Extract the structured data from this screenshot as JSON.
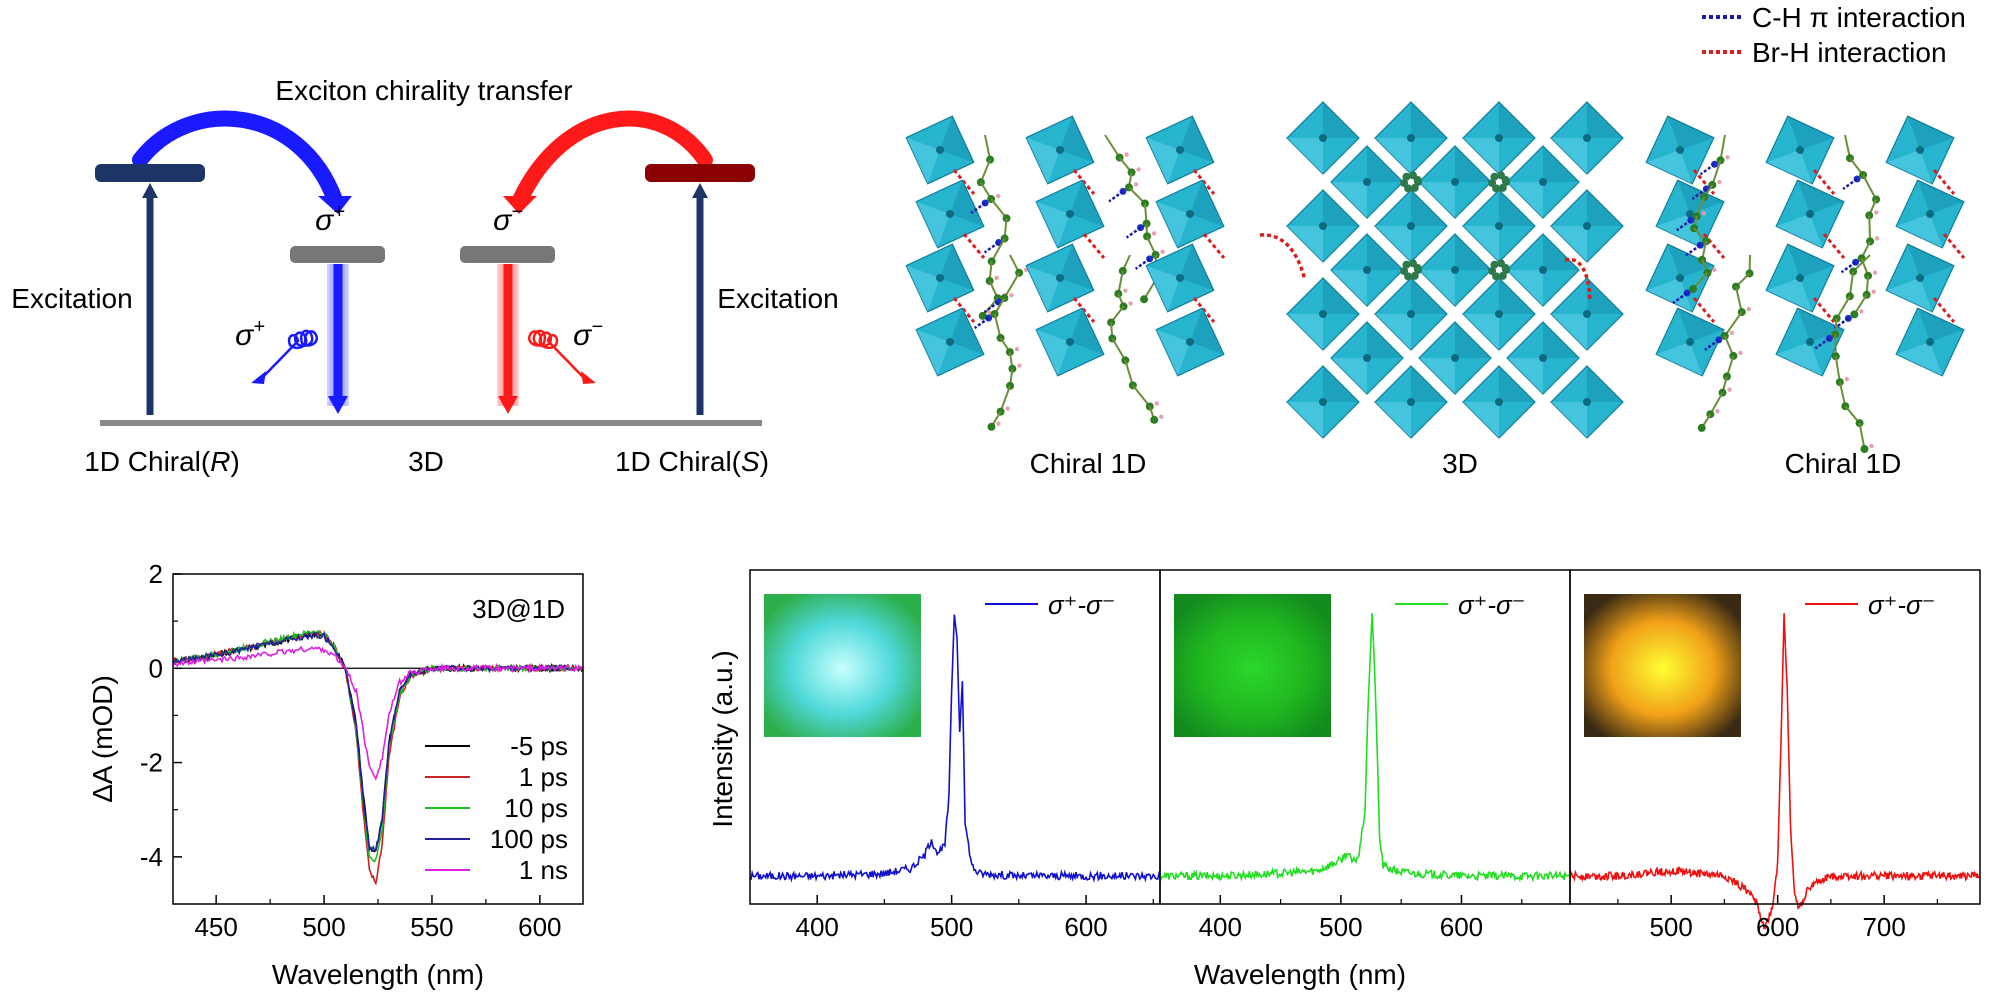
{
  "schematic": {
    "title": "Exciton chirality transfer",
    "excitation_left": "Excitation",
    "excitation_right": "Excitation",
    "sigma_plus": "σ",
    "sigma_plus_sup": "+",
    "sigma_minus": "σ",
    "sigma_minus_sup": "−",
    "label_r_prefix": "1D Chiral(",
    "label_r_italic": "R",
    "label_r_suffix": ")",
    "label_3d": "3D",
    "label_s_prefix": "1D Chiral(",
    "label_s_italic": "S",
    "label_s_suffix": ")",
    "colors": {
      "navy": "#1c3466",
      "blue": "#1a1aff",
      "red": "#ff1a1a",
      "darkred": "#8b0000",
      "gray": "#777777"
    }
  },
  "structure": {
    "legend": [
      {
        "label": "C-H π interaction",
        "color": "#1a1aa6"
      },
      {
        "label": "Br-H  interaction",
        "color": "#d62020"
      }
    ],
    "label_left": "Chiral 1D",
    "label_center": "3D",
    "label_right": "Chiral 1D",
    "colors": {
      "octahedron": "#27b4cf",
      "octahedron_dark": "#0f7f9c",
      "carbon": "#2e7d22",
      "hydrogen": "#e6a0b0",
      "nitrogen": "#1c2fcc"
    }
  },
  "chart_data": [
    {
      "type": "line",
      "annotation": "3D@1D",
      "xlabel": "Wavelength (nm)",
      "ylabel": "ΔA (mOD)",
      "xlim": [
        430,
        620
      ],
      "ylim": [
        -5.0,
        2.0
      ],
      "xticks": [
        "450",
        "500",
        "550",
        "600"
      ],
      "yticks": [
        "2",
        "0",
        "-2",
        "-4"
      ],
      "zero_line": true,
      "legend_position": "lower-right",
      "x": [
        430,
        440,
        450,
        460,
        470,
        480,
        490,
        495,
        500,
        505,
        510,
        515,
        518,
        521,
        524,
        527,
        530,
        535,
        540,
        550,
        560,
        580,
        600,
        620
      ],
      "series": [
        {
          "name": "-5 ps",
          "color": "#000000",
          "values": [
            0.15,
            0.2,
            0.28,
            0.38,
            0.48,
            0.58,
            0.68,
            0.72,
            0.7,
            0.45,
            0.0,
            -1.2,
            -2.6,
            -3.8,
            -3.9,
            -3.2,
            -1.6,
            -0.5,
            -0.15,
            0.0,
            0.0,
            0.0,
            0.0,
            0.0
          ]
        },
        {
          "name": "1 ps",
          "color": "#cc2222",
          "values": [
            0.17,
            0.22,
            0.3,
            0.4,
            0.5,
            0.6,
            0.7,
            0.75,
            0.72,
            0.45,
            -0.05,
            -1.4,
            -3.0,
            -4.3,
            -4.55,
            -3.7,
            -1.9,
            -0.6,
            -0.2,
            0.0,
            0.0,
            0.0,
            0.0,
            0.0
          ]
        },
        {
          "name": "10 ps",
          "color": "#22bb22",
          "values": [
            0.16,
            0.21,
            0.3,
            0.4,
            0.52,
            0.62,
            0.72,
            0.78,
            0.72,
            0.45,
            -0.03,
            -1.3,
            -2.8,
            -4.0,
            -4.1,
            -3.4,
            -1.7,
            -0.55,
            -0.15,
            0.0,
            0.0,
            0.0,
            0.0,
            0.0
          ]
        },
        {
          "name": "100 ps",
          "color": "#222299",
          "values": [
            0.15,
            0.2,
            0.28,
            0.37,
            0.47,
            0.57,
            0.66,
            0.7,
            0.68,
            0.42,
            -0.03,
            -1.25,
            -2.7,
            -3.8,
            -3.85,
            -3.2,
            -1.6,
            -0.5,
            -0.15,
            0.0,
            0.0,
            0.0,
            0.0,
            0.0
          ]
        },
        {
          "name": "1 ns",
          "color": "#dd22dd",
          "values": [
            0.1,
            0.13,
            0.17,
            0.22,
            0.28,
            0.34,
            0.4,
            0.42,
            0.4,
            0.25,
            0.0,
            -0.5,
            -1.3,
            -2.1,
            -2.3,
            -1.9,
            -1.0,
            -0.3,
            -0.1,
            0.0,
            0.0,
            0.0,
            0.0,
            0.0
          ]
        }
      ]
    },
    {
      "type": "line",
      "xlabel": "Wavelength (nm)",
      "ylabel": "Intensity (a.u.)",
      "yticks_shown": false,
      "panels": [
        {
          "legend": "σ⁺-σ⁻",
          "color": "#1111cc",
          "xlim": [
            350,
            655
          ],
          "xticks": [
            "400",
            "500",
            "600"
          ],
          "inset_colors": [
            "#c8ffff",
            "#4ed8d8",
            "#2cae4a"
          ],
          "x": [
            350,
            400,
            450,
            470,
            480,
            485,
            490,
            495,
            498,
            500,
            502,
            504,
            506,
            508,
            510,
            515,
            520,
            550,
            600,
            655
          ],
          "values": [
            0.0,
            0.0,
            0.01,
            0.03,
            0.08,
            0.14,
            0.08,
            0.12,
            0.3,
            0.7,
            1.0,
            0.9,
            0.55,
            0.75,
            0.2,
            0.04,
            0.01,
            0.0,
            0.0,
            0.0
          ]
        },
        {
          "legend": "σ⁺-σ⁻",
          "color": "#22dd22",
          "xlim": [
            350,
            690
          ],
          "xticks": [
            "400",
            "500",
            "600"
          ],
          "inset_colors": [
            "#2bd62b",
            "#20b820",
            "#138a1e"
          ],
          "x": [
            350,
            400,
            450,
            480,
            500,
            505,
            510,
            515,
            520,
            523,
            526,
            529,
            532,
            535,
            545,
            560,
            600,
            690
          ],
          "values": [
            0.0,
            0.0,
            0.01,
            0.02,
            0.06,
            0.09,
            0.05,
            0.08,
            0.25,
            0.7,
            1.0,
            0.65,
            0.15,
            0.04,
            0.02,
            0.01,
            0.0,
            0.0
          ]
        },
        {
          "legend": "σ⁺-σ⁻",
          "color": "#ee1111",
          "xlim": [
            405,
            790
          ],
          "xticks": [
            "500",
            "600",
            "700"
          ],
          "inset_colors": [
            "#ffff33",
            "#f0a018",
            "#3a2a14"
          ],
          "x": [
            405,
            450,
            500,
            550,
            570,
            580,
            588,
            595,
            600,
            603,
            606,
            609,
            612,
            616,
            620,
            630,
            650,
            700,
            790
          ],
          "values": [
            0.0,
            0.0,
            0.02,
            0.0,
            -0.05,
            -0.1,
            -0.2,
            -0.12,
            0.05,
            0.5,
            1.0,
            0.7,
            0.2,
            -0.08,
            -0.12,
            -0.04,
            0.0,
            0.0,
            0.0
          ]
        }
      ]
    }
  ]
}
